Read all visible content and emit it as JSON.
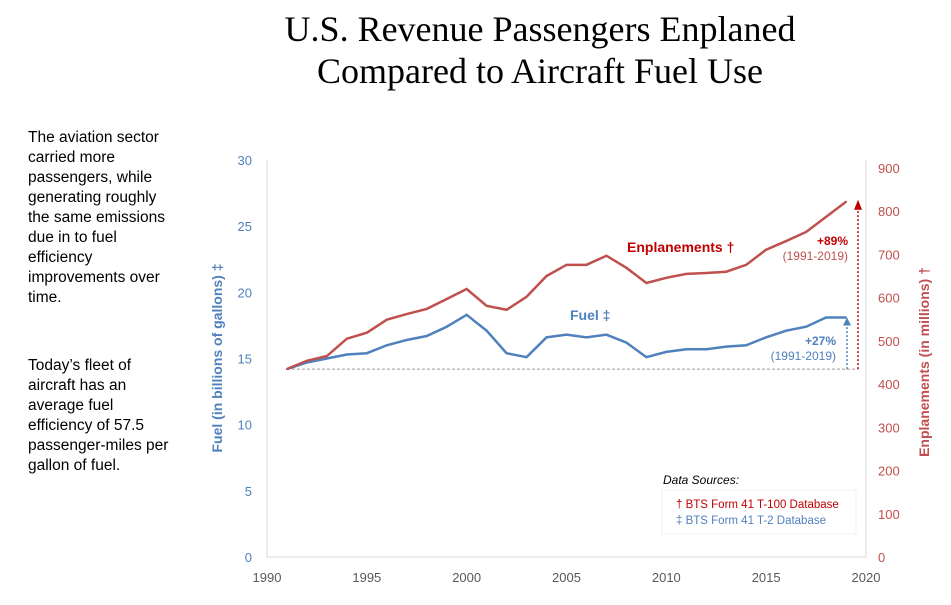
{
  "title_line1": "U.S. Revenue Passengers Enplaned",
  "title_line2": "Compared to Aircraft Fuel Use",
  "side_text_1": "The aviation sector carried more passengers, while generating roughly the same emissions due in to fuel efficiency improvements over time.",
  "side_text_2": "Today’s fleet of aircraft has an average fuel efficiency of 57.5 passenger-miles per gallon of fuel.",
  "chart_data": {
    "type": "line",
    "x": [
      1991,
      1992,
      1993,
      1994,
      1995,
      1996,
      1997,
      1998,
      1999,
      2000,
      2001,
      2002,
      2003,
      2004,
      2005,
      2006,
      2007,
      2008,
      2009,
      2010,
      2011,
      2012,
      2013,
      2014,
      2015,
      2016,
      2017,
      2018,
      2019
    ],
    "series": [
      {
        "name": "Fuel ‡",
        "axis": "left",
        "color": "#4f81bd",
        "values": [
          14.2,
          14.7,
          15.0,
          15.3,
          15.4,
          16.0,
          16.4,
          16.7,
          17.4,
          18.3,
          17.1,
          15.4,
          15.1,
          16.6,
          16.8,
          16.6,
          16.8,
          16.2,
          15.1,
          15.5,
          15.7,
          15.7,
          15.9,
          16.0,
          16.6,
          17.1,
          17.4,
          18.1,
          18.1
        ]
      },
      {
        "name": "Enplanements †",
        "axis": "right",
        "color": "#c0504d",
        "values": [
          435,
          454,
          465,
          505,
          519,
          549,
          562,
          574,
          597,
          620,
          581,
          572,
          602,
          650,
          676,
          676,
          697,
          669,
          634,
          646,
          655,
          657,
          660,
          676,
          711,
          731,
          752,
          787,
          822
        ]
      }
    ],
    "xlim": [
      1990,
      2020
    ],
    "xticks": [
      "1990",
      "1995",
      "2000",
      "2005",
      "2010",
      "2015",
      "2020"
    ],
    "ylim_left": [
      0,
      30
    ],
    "yticks_left": [
      "0",
      "5",
      "10",
      "15",
      "20",
      "25",
      "30"
    ],
    "ylim_right": [
      0,
      900
    ],
    "yticks_right": [
      "0",
      "100",
      "200",
      "300",
      "400",
      "500",
      "600",
      "700",
      "800",
      "900"
    ],
    "ylabel_left": "Fuel (in billions of gallons) ‡",
    "ylabel_right": "Enplanements (in millions) †",
    "annotations": {
      "enp_pct": "+89%",
      "enp_range": "(1991-2019)",
      "fuel_pct": "+27%",
      "fuel_range": "(1991-2019)"
    },
    "sources_title": "Data Sources:",
    "source_1": "†  BTS Form 41 T-100 Database",
    "source_2": "‡  BTS Form 41 T-2 Database",
    "grid": false
  }
}
